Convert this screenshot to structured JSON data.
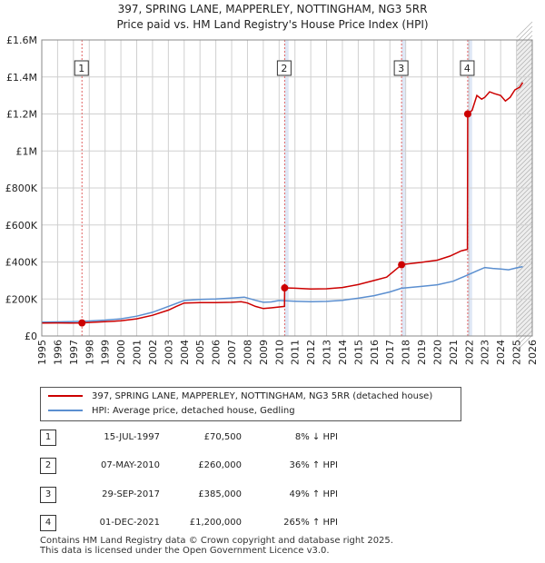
{
  "title_line1": "397, SPRING LANE, MAPPERLEY, NOTTINGHAM, NG3 5RR",
  "title_line2": "Price paid vs. HM Land Registry's House Price Index (HPI)",
  "colors": {
    "price": "#cc0000",
    "hpi": "#5b8fd0",
    "shade": "#dfe7f5",
    "grid": "#d0d0d0",
    "marker_line": "#e06060"
  },
  "chart_data": {
    "type": "line",
    "title": "397, SPRING LANE, MAPPERLEY, NOTTINGHAM, NG3 5RR",
    "subtitle": "Price paid vs. HM Land Registry's House Price Index (HPI)",
    "xlabel": "",
    "ylabel": "",
    "xlim": [
      1995,
      2026
    ],
    "ylim": [
      0,
      1600000
    ],
    "x_ticks": [
      1995,
      1996,
      1997,
      1998,
      1999,
      2000,
      2001,
      2002,
      2003,
      2004,
      2005,
      2006,
      2007,
      2008,
      2009,
      2010,
      2011,
      2012,
      2013,
      2014,
      2015,
      2016,
      2017,
      2018,
      2019,
      2020,
      2021,
      2022,
      2023,
      2024,
      2025,
      2026
    ],
    "y_ticks": [
      0,
      200000,
      400000,
      600000,
      800000,
      1000000,
      1200000,
      1400000,
      1600000
    ],
    "y_tick_labels": [
      "£0",
      "£200K",
      "£400K",
      "£600K",
      "£800K",
      "£1M",
      "£1.2M",
      "£1.4M",
      "£1.6M"
    ],
    "grid": true,
    "shaded_periods": [
      [
        2010.35,
        2010.6
      ],
      [
        2017.74,
        2018.0
      ],
      [
        2021.92,
        2022.2
      ],
      [
        2025.0,
        2026.0
      ]
    ],
    "series": [
      {
        "name": "397, SPRING LANE, MAPPERLEY, NOTTINGHAM, NG3 5RR (detached house)",
        "color": "#cc0000",
        "points": [
          [
            1995.0,
            70000
          ],
          [
            1996.0,
            70500
          ],
          [
            1996.8,
            70000
          ],
          [
            1997.54,
            70500
          ],
          [
            1998.0,
            73000
          ],
          [
            1999.0,
            77000
          ],
          [
            2000.0,
            82000
          ],
          [
            2001.0,
            93000
          ],
          [
            2002.0,
            112000
          ],
          [
            2003.0,
            140000
          ],
          [
            2003.5,
            160000
          ],
          [
            2004.0,
            178000
          ],
          [
            2005.0,
            180000
          ],
          [
            2006.0,
            180000
          ],
          [
            2007.0,
            182000
          ],
          [
            2007.6,
            185000
          ],
          [
            2008.0,
            178000
          ],
          [
            2008.5,
            160000
          ],
          [
            2009.0,
            148000
          ],
          [
            2009.5,
            152000
          ],
          [
            2010.34,
            160000
          ],
          [
            2010.35,
            260000
          ],
          [
            2011.0,
            258000
          ],
          [
            2012.0,
            254000
          ],
          [
            2013.0,
            255000
          ],
          [
            2014.0,
            262000
          ],
          [
            2015.0,
            278000
          ],
          [
            2016.0,
            300000
          ],
          [
            2016.8,
            318000
          ],
          [
            2017.74,
            385000
          ],
          [
            2018.0,
            388000
          ],
          [
            2019.0,
            398000
          ],
          [
            2020.0,
            410000
          ],
          [
            2020.8,
            432000
          ],
          [
            2021.5,
            460000
          ],
          [
            2021.9,
            468000
          ],
          [
            2021.92,
            1200000
          ],
          [
            2022.2,
            1220000
          ],
          [
            2022.5,
            1300000
          ],
          [
            2022.8,
            1280000
          ],
          [
            2023.0,
            1290000
          ],
          [
            2023.3,
            1320000
          ],
          [
            2023.6,
            1310000
          ],
          [
            2024.0,
            1300000
          ],
          [
            2024.3,
            1270000
          ],
          [
            2024.6,
            1290000
          ],
          [
            2024.9,
            1330000
          ],
          [
            2025.2,
            1345000
          ],
          [
            2025.4,
            1370000
          ]
        ]
      },
      {
        "name": "HPI: Average price, detached house, Gedling",
        "color": "#5b8fd0",
        "points": [
          [
            1995.0,
            75000
          ],
          [
            1996.0,
            76000
          ],
          [
            1997.0,
            78000
          ],
          [
            1998.0,
            81000
          ],
          [
            1999.0,
            86000
          ],
          [
            2000.0,
            93000
          ],
          [
            2001.0,
            107000
          ],
          [
            2002.0,
            128000
          ],
          [
            2003.0,
            160000
          ],
          [
            2004.0,
            192000
          ],
          [
            2005.0,
            198000
          ],
          [
            2006.0,
            200000
          ],
          [
            2007.0,
            205000
          ],
          [
            2007.8,
            210000
          ],
          [
            2008.5,
            193000
          ],
          [
            2009.0,
            182000
          ],
          [
            2009.5,
            184000
          ],
          [
            2010.0,
            192000
          ],
          [
            2011.0,
            188000
          ],
          [
            2012.0,
            185000
          ],
          [
            2013.0,
            187000
          ],
          [
            2014.0,
            193000
          ],
          [
            2015.0,
            204000
          ],
          [
            2016.0,
            218000
          ],
          [
            2017.0,
            238000
          ],
          [
            2017.74,
            258000
          ],
          [
            2018.0,
            260000
          ],
          [
            2019.0,
            268000
          ],
          [
            2020.0,
            277000
          ],
          [
            2021.0,
            296000
          ],
          [
            2021.92,
            330000
          ],
          [
            2022.5,
            352000
          ],
          [
            2023.0,
            370000
          ],
          [
            2023.5,
            365000
          ],
          [
            2024.0,
            362000
          ],
          [
            2024.5,
            358000
          ],
          [
            2025.0,
            368000
          ],
          [
            2025.4,
            375000
          ]
        ]
      }
    ],
    "annotations": [
      {
        "label": "1",
        "x": 1997.54,
        "y": 70500
      },
      {
        "label": "2",
        "x": 2010.35,
        "y": 260000
      },
      {
        "label": "3",
        "x": 2017.74,
        "y": 385000
      },
      {
        "label": "4",
        "x": 2021.92,
        "y": 1200000
      }
    ]
  },
  "legend": {
    "price_label": "397, SPRING LANE, MAPPERLEY, NOTTINGHAM, NG3 5RR (detached house)",
    "hpi_label": "HPI: Average price, detached house, Gedling"
  },
  "sales": [
    {
      "num": "1",
      "date": "15-JUL-1997",
      "price": "£70,500",
      "hpi": "8% ↓ HPI"
    },
    {
      "num": "2",
      "date": "07-MAY-2010",
      "price": "£260,000",
      "hpi": "36% ↑ HPI"
    },
    {
      "num": "3",
      "date": "29-SEP-2017",
      "price": "£385,000",
      "hpi": "49% ↑ HPI"
    },
    {
      "num": "4",
      "date": "01-DEC-2021",
      "price": "£1,200,000",
      "hpi": "265% ↑ HPI"
    }
  ],
  "footer_line1": "Contains HM Land Registry data © Crown copyright and database right 2025.",
  "footer_line2": "This data is licensed under the Open Government Licence v3.0."
}
